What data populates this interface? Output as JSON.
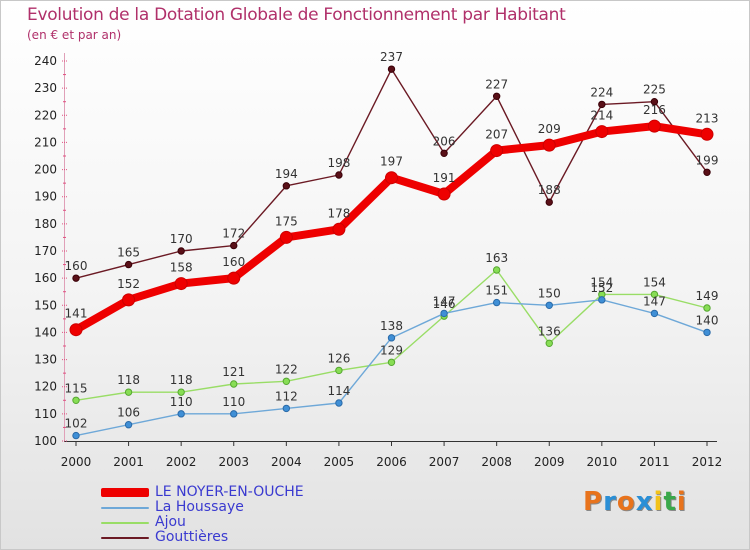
{
  "header": {
    "title": "Evolution de la Dotation Globale de Fonctionnement par Habitant",
    "subtitle": "(en € et par an)"
  },
  "logo": {
    "text": "Proxiti",
    "letters": [
      {
        "ch": "P",
        "color": "#e8731c"
      },
      {
        "ch": "r",
        "color": "#2a8fd6"
      },
      {
        "ch": "o",
        "color": "#e8731c"
      },
      {
        "ch": "x",
        "color": "#2a8fd6"
      },
      {
        "ch": "i",
        "color": "#f2c21a"
      },
      {
        "ch": "t",
        "color": "#3aa84a"
      },
      {
        "ch": "i",
        "color": "#e8731c"
      }
    ]
  },
  "chart_data": {
    "type": "line",
    "title": "Evolution de la Dotation Globale de Fonctionnement par Habitant",
    "subtitle": "(en € et par an)",
    "xlabel": "",
    "ylabel": "",
    "ylim": [
      100,
      240
    ],
    "yticks": [
      100,
      110,
      120,
      130,
      140,
      150,
      160,
      170,
      180,
      190,
      200,
      210,
      220,
      230,
      240
    ],
    "grid": false,
    "legend_position": "bottom-left",
    "x": [
      "2000",
      "2001",
      "2002",
      "2003",
      "2004",
      "2005",
      "2006",
      "2007",
      "2008",
      "2009",
      "2010",
      "2011",
      "2012"
    ],
    "series": [
      {
        "name": "Gouttières",
        "color": "#6b1a24",
        "values": [
          160,
          165,
          170,
          172,
          194,
          198,
          237,
          206,
          227,
          188,
          224,
          225,
          199
        ]
      },
      {
        "name": "Ajou",
        "color": "#99dd66",
        "values": [
          115,
          118,
          118,
          121,
          122,
          126,
          129,
          146,
          163,
          136,
          154,
          154,
          149
        ]
      },
      {
        "name": "La Houssaye",
        "color": "#6ea8d8",
        "values": [
          102,
          106,
          110,
          110,
          112,
          114,
          138,
          147,
          151,
          150,
          152,
          147,
          140
        ]
      },
      {
        "name": "LE NOYER-EN-OUCHE",
        "color": "#ee0000",
        "values": [
          141,
          152,
          158,
          160,
          175,
          178,
          197,
          191,
          207,
          209,
          214,
          216,
          213
        ]
      }
    ]
  },
  "legend": [
    {
      "label": "LE NOYER-EN-OUCHE",
      "color": "#ee0000"
    },
    {
      "label": "La Houssaye",
      "color": "#6ea8d8"
    },
    {
      "label": "Ajou",
      "color": "#99dd66"
    },
    {
      "label": "Gouttières",
      "color": "#6b1a24"
    }
  ]
}
